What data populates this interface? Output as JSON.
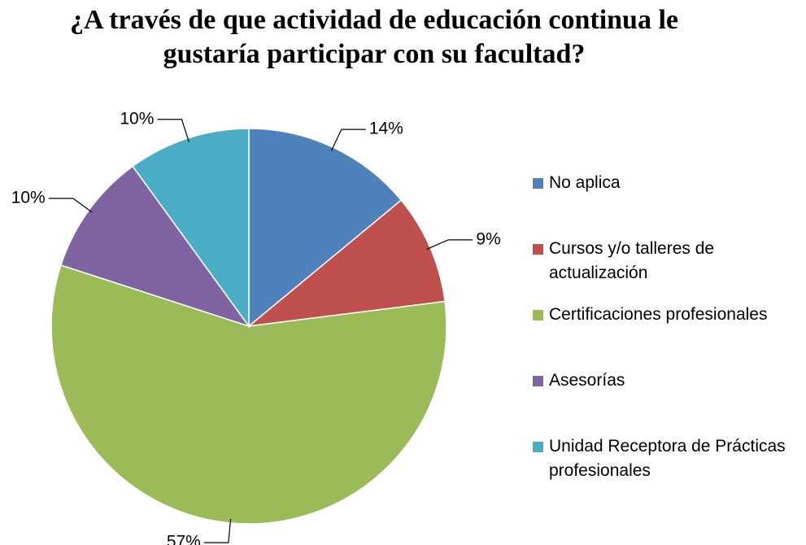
{
  "chart_data": {
    "type": "pie",
    "title": "¿A través de que actividad de educación continua le gustaría participar con su facultad?",
    "categories": [
      "No aplica",
      "Cursos y/o talleres de actualización",
      "Certificaciones profesionales",
      "Asesorías",
      "Unidad Receptora de Prácticas profesionales"
    ],
    "values": [
      14,
      9,
      57,
      10,
      10
    ],
    "value_labels": [
      "14%",
      "9%",
      "57%",
      "10%",
      "10%"
    ],
    "colors": [
      "#4f81bd",
      "#c0504d",
      "#9bbb59",
      "#8064a2",
      "#4bacc6"
    ],
    "legend": "right"
  }
}
